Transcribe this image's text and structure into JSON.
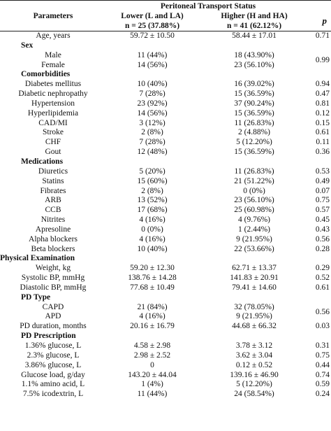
{
  "header": {
    "group_title": "Peritoneal Transport Status",
    "col_param": "Parameters",
    "col_lower": "Lower (L and LA)",
    "col_lower_n": "n = 25 (37.88%)",
    "col_higher": "Higher (H and HA)",
    "col_higher_n": "n = 41 (62.12%)",
    "col_p": "p"
  },
  "rows": {
    "age": {
      "label": "Age, years",
      "lower": "59.72 ± 10.50",
      "higher": "58.44 ± 17.01",
      "p": "0.71"
    },
    "sex_title": "Sex",
    "male": {
      "label": "Male",
      "lower": "11 (44%)",
      "higher": "18 (43.90%)"
    },
    "female": {
      "label": "Female",
      "lower": "14 (56%)",
      "higher": "23 (56.10%)"
    },
    "sex_p": "0.99",
    "comorb_title": "Comorbidities",
    "dm": {
      "label": "Diabetes mellitus",
      "lower": "10 (40%)",
      "higher": "16 (39.02%)",
      "p": "0.94"
    },
    "dn": {
      "label": "Diabetic nephropathy",
      "lower": "7 (28%)",
      "higher": "15 (36.59%)",
      "p": "0.47"
    },
    "htn": {
      "label": "Hypertension",
      "lower": "23 (92%)",
      "higher": "37 (90.24%)",
      "p": "0.81"
    },
    "hl": {
      "label": "Hyperlipidemia",
      "lower": "14 (56%)",
      "higher": "15 (36.59%)",
      "p": "0.12"
    },
    "cad": {
      "label": "CAD/MI",
      "lower": "3 (12%)",
      "higher": "11 (26.83%)",
      "p": "0.15"
    },
    "stroke": {
      "label": "Stroke",
      "lower": "2 (8%)",
      "higher": "2 (4.88%)",
      "p": "0.61"
    },
    "chf": {
      "label": "CHF",
      "lower": "7 (28%)",
      "higher": "5 (12.20%)",
      "p": "0.11"
    },
    "gout": {
      "label": "Gout",
      "lower": "12 (48%)",
      "higher": "15 (36.59%)",
      "p": "0.36"
    },
    "med_title": "Medications",
    "diuretics": {
      "label": "Diuretics",
      "lower": "5 (20%)",
      "higher": "11 (26.83%)",
      "p": "0.53"
    },
    "statins": {
      "label": "Statins",
      "lower": "15 (60%)",
      "higher": "21 (51.22%)",
      "p": "0.49"
    },
    "fibrates": {
      "label": "Fibrates",
      "lower": "2 (8%)",
      "higher": "0 (0%)",
      "p": "0.07"
    },
    "arb": {
      "label": "ARB",
      "lower": "13 (52%)",
      "higher": "23 (56.10%)",
      "p": "0.75"
    },
    "ccb": {
      "label": "CCB",
      "lower": "17 (68%)",
      "higher": "25 (60.98%)",
      "p": "0.57"
    },
    "nitrites": {
      "label": "Nitrites",
      "lower": "4 (16%)",
      "higher": "4 (9.76%)",
      "p": "0.45"
    },
    "apresoline": {
      "label": "Apresoline",
      "lower": "0 (0%)",
      "higher": "1 (2.44%)",
      "p": "0.43"
    },
    "alpha": {
      "label": "Alpha blockers",
      "lower": "4 (16%)",
      "higher": "9 (21.95%)",
      "p": "0.56"
    },
    "beta": {
      "label": "Beta blockers",
      "lower": "10 (40%)",
      "higher": "22 (53.66%)",
      "p": "0.28"
    },
    "pe_title": "Physical Examination",
    "weight": {
      "label": "Weight, kg",
      "lower": "59.20 ± 12.30",
      "higher": "62.71 ± 13.37",
      "p": "0.29"
    },
    "sbp": {
      "label": "Systolic BP, mmHg",
      "lower": "138.76 ± 14.28",
      "higher": "141.83 ± 20.91",
      "p": "0.52"
    },
    "dbp": {
      "label": "Diastolic BP, mmHg",
      "lower": "77.68 ± 10.49",
      "higher": "79.41 ± 14.60",
      "p": "0.61"
    },
    "pdtype_title": "PD Type",
    "capd": {
      "label": "CAPD",
      "lower": "21 (84%)",
      "higher": "32 (78.05%)"
    },
    "apd": {
      "label": "APD",
      "lower": "4 (16%)",
      "higher": "9 (21.95%)"
    },
    "pdtype_p": "0.56",
    "pddur": {
      "label": "PD duration, months",
      "lower": "20.16 ± 16.79",
      "higher": "44.68 ± 66.32",
      "p": "0.03"
    },
    "pdrx_title": "PD Prescription",
    "g136": {
      "label": "1.36% glucose, L",
      "lower": "4.58 ± 2.98",
      "higher": "3.78 ± 3.12",
      "p": "0.31"
    },
    "g23": {
      "label": "2.3% glucose, L",
      "lower": "2.98 ± 2.52",
      "higher": "3.62 ± 3.04",
      "p": "0.75"
    },
    "g386": {
      "label": "3.86% glucose, L",
      "lower": "0",
      "higher": "0.12 ± 0.52",
      "p": "0.44"
    },
    "gload": {
      "label": "Glucose load, g/day",
      "lower": "143.20 ± 44.04",
      "higher": "139.16 ± 46.90",
      "p": "0.74"
    },
    "aa": {
      "label": "1.1% amino acid, L",
      "lower": "1 (4%)",
      "higher": "5 (12.20%)",
      "p": "0.59"
    },
    "icodex": {
      "label": "7.5% icodextrin, L",
      "lower": "11 (44%)",
      "higher": "24 (58.54%)",
      "p": "0.24"
    }
  }
}
